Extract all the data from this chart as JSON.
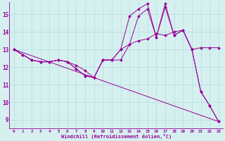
{
  "xlabel": "Windchill (Refroidissement éolien,°C)",
  "bg_color": "#d6f0ef",
  "grid_color": "#b0dede",
  "line_color": "#990099",
  "xlim": [
    -0.5,
    23.5
  ],
  "ylim": [
    8.5,
    15.7
  ],
  "xticks": [
    0,
    1,
    2,
    3,
    4,
    5,
    6,
    7,
    8,
    9,
    10,
    11,
    12,
    13,
    14,
    15,
    16,
    17,
    18,
    19,
    20,
    21,
    22,
    23
  ],
  "yticks": [
    9,
    10,
    11,
    12,
    13,
    14,
    15
  ],
  "series1_x": [
    0,
    1,
    2,
    3,
    4,
    5,
    6,
    7,
    8,
    9,
    10,
    11,
    12,
    13,
    14,
    15,
    16,
    17,
    18,
    19,
    20,
    21,
    22,
    23
  ],
  "series1_y": [
    13.0,
    12.7,
    12.4,
    12.3,
    12.3,
    12.4,
    12.3,
    11.9,
    11.5,
    11.4,
    12.4,
    12.4,
    13.0,
    14.9,
    15.3,
    15.6,
    13.7,
    15.6,
    13.8,
    14.1,
    13.0,
    10.6,
    9.8,
    8.9
  ],
  "series2_x": [
    0,
    1,
    2,
    3,
    4,
    5,
    6,
    7,
    8,
    9,
    10,
    11,
    12,
    13,
    14,
    15,
    16,
    17,
    18,
    19,
    20,
    21,
    22,
    23
  ],
  "series2_y": [
    13.0,
    12.7,
    12.4,
    12.3,
    12.3,
    12.4,
    12.3,
    11.9,
    11.5,
    11.4,
    12.4,
    12.4,
    13.0,
    13.3,
    13.5,
    13.6,
    13.9,
    13.8,
    14.0,
    14.1,
    13.0,
    13.1,
    13.1,
    13.1
  ],
  "series3_x": [
    0,
    1,
    2,
    3,
    4,
    5,
    6,
    7,
    8,
    9,
    10,
    11,
    12,
    13,
    14,
    15,
    16,
    17,
    18,
    19,
    20,
    21,
    22,
    23
  ],
  "series3_y": [
    13.0,
    12.7,
    12.4,
    12.3,
    12.3,
    12.4,
    12.3,
    12.1,
    11.8,
    11.4,
    12.4,
    12.4,
    12.4,
    13.3,
    14.9,
    15.3,
    13.7,
    15.4,
    13.8,
    14.1,
    13.0,
    10.6,
    9.8,
    8.9
  ],
  "series4_x": [
    0,
    23
  ],
  "series4_y": [
    13.0,
    8.9
  ]
}
